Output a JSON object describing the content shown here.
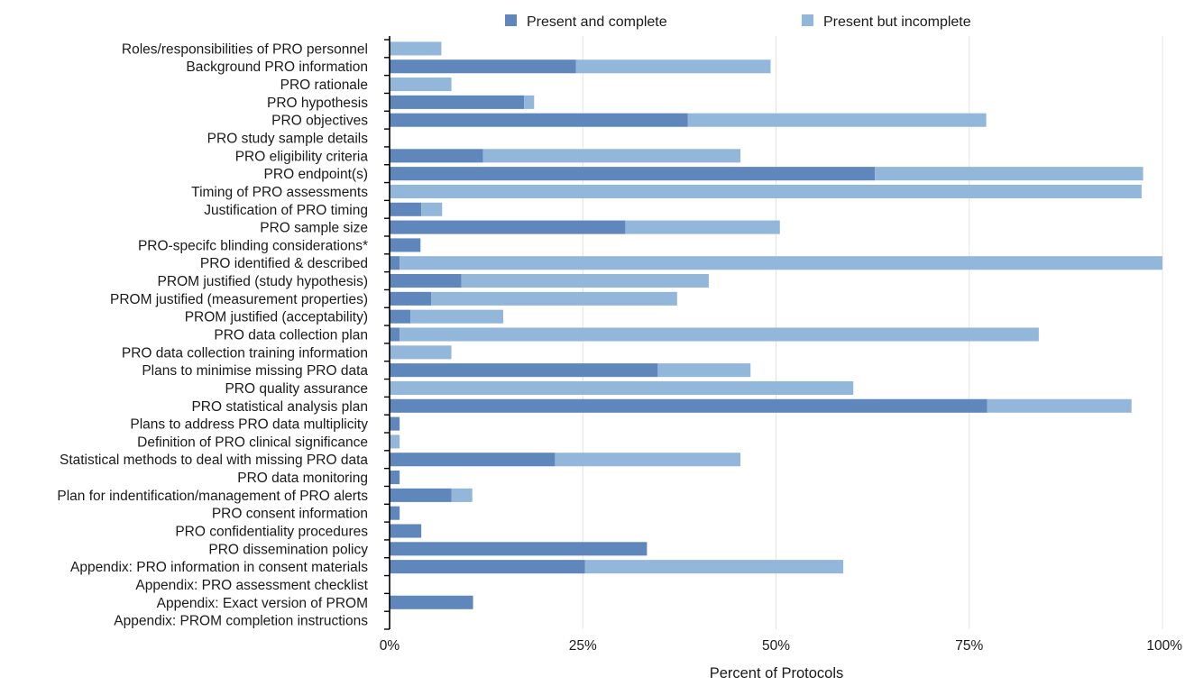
{
  "colors": {
    "complete": "#5f87bb",
    "incomplete": "#93b7da",
    "grid": "#e4e4e4",
    "axis": "#000000"
  },
  "chart_data": {
    "type": "bar",
    "orientation": "horizontal",
    "stacked": true,
    "xlabel": "Percent of Protocols",
    "ylabel": "",
    "xlim": [
      0,
      100
    ],
    "xticks": [
      0,
      25,
      50,
      75,
      100
    ],
    "xtick_labels": [
      "0%",
      "25%",
      "50%",
      "75%",
      "100%"
    ],
    "grid": "vertical",
    "legend_position": "top",
    "categories": [
      "Roles/responsibilities of PRO personnel",
      "Background PRO information",
      "PRO rationale",
      "PRO hypothesis",
      "PRO objectives",
      "PRO study sample details",
      "PRO eligibility criteria",
      "PRO endpoint(s)",
      "Timing of PRO assessments",
      "Justification of PRO timing",
      "PRO sample size",
      "PRO-specifc blinding considerations*",
      "PRO identified & described",
      "PROM justified (study hypothesis)",
      "PROM justified (measurement properties)",
      "PROM justified (acceptability)",
      "PRO data collection plan",
      "PRO data collection training information",
      "Plans to minimise missing PRO data",
      "PRO quality assurance",
      "PRO statistical analysis plan",
      "Plans to address PRO data multiplicity",
      "Definition of PRO clinical significance",
      "Statistical methods to deal with missing PRO data",
      "PRO data monitoring",
      "Plan for indentification/management of PRO alerts",
      "PRO consent information",
      "PRO confidentiality procedures",
      "PRO dissemination policy",
      "Appendix: PRO information in consent materials",
      "Appendix: PRO assessment checklist",
      "Appendix: Exact version of PROM",
      "Appendix: PROM completion instructions"
    ],
    "series": [
      {
        "name": "Present and complete",
        "color_key": "complete",
        "values": [
          0,
          24.1,
          0,
          17.4,
          38.6,
          0,
          12.1,
          62.8,
          0,
          4.1,
          30.5,
          4.0,
          1.3,
          9.3,
          5.4,
          2.7,
          1.3,
          0,
          34.7,
          0,
          77.3,
          1.3,
          0,
          21.4,
          1.3,
          8.0,
          1.3,
          4.1,
          33.3,
          25.3,
          0,
          10.8,
          0
        ]
      },
      {
        "name": "Present but incomplete",
        "color_key": "incomplete",
        "values": [
          6.7,
          25.2,
          8.0,
          1.3,
          38.6,
          0,
          33.3,
          34.7,
          97.3,
          2.7,
          20.0,
          0,
          98.7,
          32.0,
          31.8,
          12.0,
          82.7,
          8.0,
          12.0,
          60.0,
          18.7,
          0,
          1.3,
          24.0,
          0,
          2.7,
          0,
          0,
          0,
          33.4,
          0,
          0,
          0
        ]
      }
    ]
  }
}
